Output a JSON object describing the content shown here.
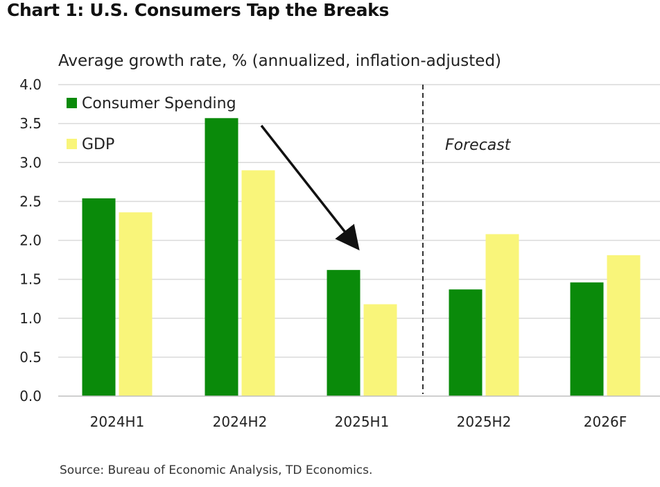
{
  "title": "Chart 1: U.S. Consumers Tap the Breaks",
  "subtitle": "Average growth rate, % (annualized, inflation-adjusted)",
  "source": "Source: Bureau of Economic Analysis, TD Economics.",
  "colors": {
    "consumer_spending": "#0a8a0a",
    "gdp": "#f9f57a",
    "grid": "#d9d9d9",
    "divider": "#333333",
    "arrow": "#111111"
  },
  "chart_data": {
    "type": "bar",
    "categories": [
      "2024H1",
      "2024H2",
      "2025H1",
      "2025H2",
      "2026F"
    ],
    "series": [
      {
        "name": "Consumer Spending",
        "values": [
          2.54,
          3.57,
          1.62,
          1.37,
          1.46
        ]
      },
      {
        "name": "GDP",
        "values": [
          2.36,
          2.9,
          1.18,
          2.08,
          1.81
        ]
      }
    ],
    "ylim": [
      0,
      4.0
    ],
    "yticks": [
      "0.0",
      "0.5",
      "1.0",
      "1.5",
      "2.0",
      "2.5",
      "3.0",
      "3.5",
      "4.0"
    ],
    "grid": true,
    "legend_position": "top-left",
    "annotations": {
      "forecast_label": "Forecast",
      "forecast_divider_between": [
        "2025H1",
        "2025H2"
      ],
      "arrow": "from 2024H2 down to 2025H1"
    }
  }
}
